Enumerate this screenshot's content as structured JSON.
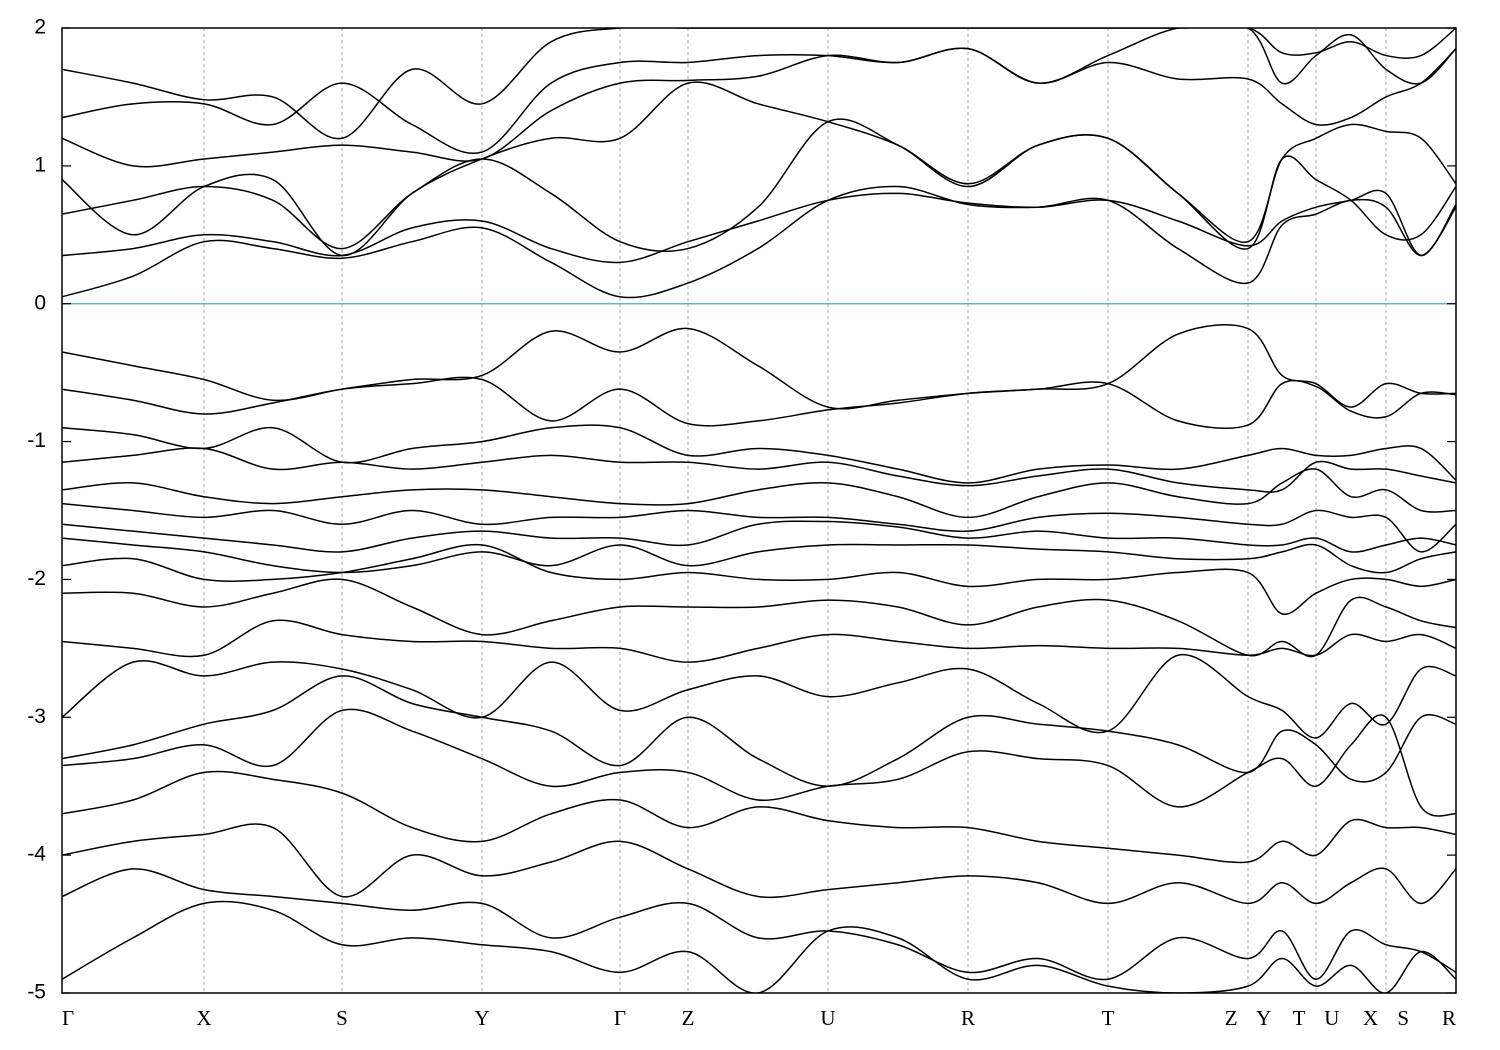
{
  "chart_data": {
    "type": "line",
    "x": [
      0,
      0.71,
      1.42,
      2.11,
      2.8,
      3.5,
      4.2,
      4.89,
      5.58,
      6.26,
      6.96,
      7.66,
      8.36,
      9.06,
      9.76,
      10.46,
      11.16,
      11.86,
      12.2,
      12.54,
      12.89,
      13.24,
      13.59,
      13.94
    ],
    "xlim": [
      0,
      13.94
    ],
    "xticks": [
      {
        "value": 0,
        "label": "Γ"
      },
      {
        "value": 1.42,
        "label": "X"
      },
      {
        "value": 2.8,
        "label": "S"
      },
      {
        "value": 4.2,
        "label": "Y"
      },
      {
        "value": 5.58,
        "label": "Γ"
      },
      {
        "value": 6.26,
        "label": "Z"
      },
      {
        "value": 7.66,
        "label": "U"
      },
      {
        "value": 9.06,
        "label": "R"
      },
      {
        "value": 10.46,
        "label": "T"
      },
      {
        "value": 11.86,
        "label": "Z Y"
      },
      {
        "value": 12.54,
        "label": "T U"
      },
      {
        "value": 13.24,
        "label": "X S"
      },
      {
        "value": 13.94,
        "label": "R"
      }
    ],
    "ylim": [
      -5,
      2
    ],
    "yticks": [
      -5,
      -4,
      -3,
      -2,
      -1,
      0,
      1,
      2
    ],
    "xgrid": true,
    "color": "#000000",
    "hline": 0,
    "hline_color": "#5fb7c6",
    "series": [
      {
        "values": [
          0.05,
          0.2,
          0.45,
          0.4,
          0.33,
          0.45,
          0.55,
          0.3,
          0.05,
          0.15,
          0.4,
          0.75,
          0.85,
          0.72,
          0.7,
          0.75,
          0.4,
          0.15,
          0.57,
          0.65,
          0.75,
          0.7,
          0.35,
          0.7
        ]
      },
      {
        "values": [
          0.35,
          0.4,
          0.5,
          0.45,
          0.35,
          0.55,
          0.6,
          0.4,
          0.3,
          0.45,
          0.6,
          0.75,
          0.8,
          0.73,
          0.7,
          0.75,
          0.6,
          0.42,
          0.6,
          0.7,
          0.75,
          0.8,
          0.35,
          0.72
        ]
      },
      {
        "values": [
          0.65,
          0.75,
          0.85,
          0.75,
          0.4,
          0.8,
          1.05,
          0.8,
          0.45,
          0.4,
          0.7,
          1.32,
          1.15,
          0.85,
          1.15,
          1.2,
          0.8,
          0.4,
          1.05,
          0.9,
          0.75,
          0.5,
          0.5,
          0.85
        ]
      },
      {
        "values": [
          0.9,
          0.5,
          0.85,
          0.9,
          0.35,
          0.8,
          1.05,
          1.2,
          1.2,
          1.6,
          1.45,
          1.32,
          1.15,
          0.87,
          1.15,
          1.2,
          0.8,
          0.45,
          1.05,
          1.2,
          1.3,
          1.25,
          1.2,
          0.87
        ]
      },
      {
        "values": [
          1.2,
          1.0,
          1.05,
          1.1,
          1.15,
          1.1,
          1.05,
          1.4,
          1.6,
          1.62,
          1.65,
          1.8,
          1.75,
          1.85,
          1.6,
          1.75,
          1.63,
          1.63,
          1.45,
          1.3,
          1.35,
          1.5,
          1.6,
          1.85
        ]
      },
      {
        "values": [
          1.35,
          1.45,
          1.45,
          1.3,
          1.6,
          1.3,
          1.1,
          1.6,
          1.75,
          1.75,
          1.8,
          1.8,
          1.75,
          1.85,
          1.6,
          1.8,
          2.0,
          2.0,
          1.6,
          1.8,
          1.95,
          1.7,
          1.6,
          1.85
        ]
      },
      {
        "values": [
          1.7,
          1.6,
          1.48,
          1.5,
          1.2,
          1.7,
          1.45,
          1.9,
          2.0,
          2.0,
          2.0,
          2.0,
          2.0,
          2.0,
          2.0,
          2.0,
          2.0,
          2.0,
          1.82,
          1.82,
          1.9,
          1.8,
          1.8,
          2.0
        ]
      },
      {
        "values": [
          -0.35,
          -0.45,
          -0.55,
          -0.7,
          -0.62,
          -0.55,
          -0.52,
          -0.2,
          -0.35,
          -0.18,
          -0.45,
          -0.75,
          -0.7,
          -0.65,
          -0.62,
          -0.58,
          -0.22,
          -0.18,
          -0.52,
          -0.58,
          -0.75,
          -0.58,
          -0.65,
          -0.65
        ]
      },
      {
        "values": [
          -0.62,
          -0.7,
          -0.8,
          -0.72,
          -0.62,
          -0.58,
          -0.55,
          -0.85,
          -0.62,
          -0.87,
          -0.85,
          -0.77,
          -0.72,
          -0.65,
          -0.62,
          -0.58,
          -0.85,
          -0.88,
          -0.58,
          -0.6,
          -0.78,
          -0.82,
          -0.65,
          -0.66
        ]
      },
      {
        "values": [
          -0.9,
          -0.95,
          -1.05,
          -0.9,
          -1.15,
          -1.05,
          -1.0,
          -0.9,
          -0.9,
          -1.1,
          -1.05,
          -1.1,
          -1.2,
          -1.3,
          -1.2,
          -1.17,
          -1.2,
          -1.1,
          -1.05,
          -1.1,
          -1.1,
          -1.05,
          -1.05,
          -1.28
        ]
      },
      {
        "values": [
          -1.15,
          -1.1,
          -1.05,
          -1.2,
          -1.15,
          -1.2,
          -1.15,
          -1.1,
          -1.15,
          -1.15,
          -1.2,
          -1.15,
          -1.25,
          -1.32,
          -1.25,
          -1.2,
          -1.3,
          -1.35,
          -1.35,
          -1.15,
          -1.2,
          -1.2,
          -1.25,
          -1.3
        ]
      },
      {
        "values": [
          -1.35,
          -1.3,
          -1.4,
          -1.45,
          -1.4,
          -1.35,
          -1.35,
          -1.4,
          -1.45,
          -1.45,
          -1.35,
          -1.3,
          -1.4,
          -1.55,
          -1.4,
          -1.3,
          -1.4,
          -1.45,
          -1.3,
          -1.2,
          -1.4,
          -1.35,
          -1.5,
          -1.5
        ]
      },
      {
        "values": [
          -1.45,
          -1.5,
          -1.55,
          -1.5,
          -1.6,
          -1.5,
          -1.6,
          -1.55,
          -1.55,
          -1.5,
          -1.55,
          -1.55,
          -1.6,
          -1.65,
          -1.55,
          -1.52,
          -1.55,
          -1.6,
          -1.6,
          -1.5,
          -1.55,
          -1.55,
          -1.8,
          -1.6
        ]
      },
      {
        "values": [
          -1.6,
          -1.65,
          -1.7,
          -1.75,
          -1.8,
          -1.7,
          -1.65,
          -1.7,
          -1.7,
          -1.75,
          -1.6,
          -1.58,
          -1.62,
          -1.7,
          -1.65,
          -1.7,
          -1.7,
          -1.75,
          -1.75,
          -1.7,
          -1.8,
          -1.75,
          -1.7,
          -1.75
        ]
      },
      {
        "values": [
          -1.7,
          -1.75,
          -1.8,
          -1.9,
          -1.95,
          -1.9,
          -1.8,
          -1.9,
          -1.75,
          -1.9,
          -1.8,
          -1.75,
          -1.75,
          -1.75,
          -1.78,
          -1.8,
          -1.85,
          -1.85,
          -1.8,
          -1.75,
          -1.9,
          -1.95,
          -1.85,
          -1.8
        ]
      },
      {
        "values": [
          -1.9,
          -1.85,
          -2.0,
          -2.0,
          -1.95,
          -1.85,
          -1.75,
          -1.95,
          -2.0,
          -1.95,
          -2.0,
          -2.0,
          -1.95,
          -2.05,
          -2.0,
          -2.0,
          -1.95,
          -1.95,
          -2.25,
          -2.1,
          -2.0,
          -2.0,
          -2.05,
          -2.0
        ]
      },
      {
        "values": [
          -2.1,
          -2.1,
          -2.2,
          -2.1,
          -2.0,
          -2.2,
          -2.4,
          -2.3,
          -2.2,
          -2.2,
          -2.2,
          -2.15,
          -2.2,
          -2.33,
          -2.2,
          -2.15,
          -2.3,
          -2.55,
          -2.45,
          -2.55,
          -2.15,
          -2.2,
          -2.3,
          -2.35
        ]
      },
      {
        "values": [
          -2.45,
          -2.5,
          -2.55,
          -2.3,
          -2.4,
          -2.45,
          -2.45,
          -2.5,
          -2.5,
          -2.6,
          -2.5,
          -2.4,
          -2.45,
          -2.5,
          -2.48,
          -2.5,
          -2.5,
          -2.55,
          -2.5,
          -2.55,
          -2.4,
          -2.45,
          -2.4,
          -2.5
        ]
      },
      {
        "values": [
          -3.0,
          -2.6,
          -2.7,
          -2.6,
          -2.65,
          -2.8,
          -3.0,
          -2.6,
          -2.95,
          -2.8,
          -2.7,
          -2.85,
          -2.75,
          -2.65,
          -2.9,
          -3.1,
          -2.55,
          -2.85,
          -2.95,
          -3.15,
          -2.9,
          -3.05,
          -2.65,
          -2.7
        ]
      },
      {
        "values": [
          -3.3,
          -3.2,
          -3.05,
          -2.95,
          -2.7,
          -2.9,
          -3.0,
          -3.1,
          -3.35,
          -3.0,
          -3.3,
          -3.5,
          -3.3,
          -3.0,
          -3.05,
          -3.1,
          -3.2,
          -3.4,
          -3.1,
          -3.2,
          -3.45,
          -3.4,
          -3.0,
          -3.05
        ]
      },
      {
        "values": [
          -3.35,
          -3.3,
          -3.2,
          -3.35,
          -2.95,
          -3.1,
          -3.3,
          -3.5,
          -3.4,
          -3.4,
          -3.6,
          -3.5,
          -3.45,
          -3.25,
          -3.3,
          -3.35,
          -3.65,
          -3.4,
          -3.3,
          -3.5,
          -3.2,
          -3.0,
          -3.65,
          -3.7
        ]
      },
      {
        "values": [
          -3.7,
          -3.6,
          -3.4,
          -3.45,
          -3.55,
          -3.8,
          -3.9,
          -3.7,
          -3.6,
          -3.8,
          -3.65,
          -3.75,
          -3.8,
          -3.8,
          -3.9,
          -3.95,
          -4.0,
          -4.05,
          -3.9,
          -4.0,
          -3.75,
          -3.8,
          -3.8,
          -3.85
        ]
      },
      {
        "values": [
          -4.0,
          -3.9,
          -3.85,
          -3.8,
          -4.3,
          -4.0,
          -4.15,
          -4.05,
          -3.9,
          -4.1,
          -4.3,
          -4.25,
          -4.2,
          -4.15,
          -4.2,
          -4.35,
          -4.2,
          -4.35,
          -4.2,
          -4.35,
          -4.2,
          -4.1,
          -4.35,
          -4.1
        ]
      },
      {
        "values": [
          -4.3,
          -4.1,
          -4.25,
          -4.3,
          -4.35,
          -4.4,
          -4.35,
          -4.6,
          -4.45,
          -4.35,
          -4.6,
          -4.55,
          -4.65,
          -4.85,
          -4.75,
          -4.9,
          -4.6,
          -4.75,
          -4.55,
          -4.9,
          -4.55,
          -4.65,
          -4.7,
          -4.85
        ]
      },
      {
        "values": [
          -4.9,
          -4.6,
          -4.35,
          -4.4,
          -4.65,
          -4.6,
          -4.65,
          -4.7,
          -4.85,
          -4.7,
          -5.0,
          -4.55,
          -4.6,
          -4.9,
          -4.8,
          -4.95,
          -5.0,
          -4.95,
          -4.75,
          -4.95,
          -4.8,
          -5.0,
          -4.7,
          -4.9
        ]
      }
    ]
  }
}
